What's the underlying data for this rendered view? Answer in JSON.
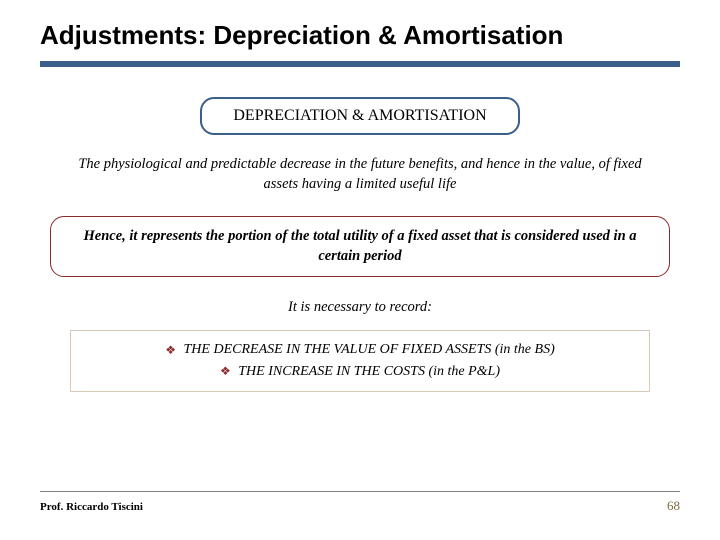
{
  "colors": {
    "accent_blue": "#3a5f8a",
    "dark_red": "#8b2a2a",
    "light_border": "#d9c9b8",
    "page_num": "#7a6a3a",
    "footer_line": "#808080"
  },
  "title": "Adjustments: Depreciation & Amortisation",
  "pill": {
    "label": "DEPRECIATION & AMORTISATION"
  },
  "definition": "The physiological and predictable decrease in the future benefits, and hence in the value, of fixed assets having a limited useful life",
  "wide_box": "Hence, it represents the portion of the total utility of a fixed asset  that is considered used in a certain period",
  "record_intro": "It is necessary to record:",
  "record_lines": [
    "THE DECREASE IN THE VALUE OF FIXED ASSETS (in the BS)",
    "THE INCREASE IN THE COSTS (in the P&L)"
  ],
  "footer": {
    "author": "Prof. Riccardo Tiscini",
    "page": "68"
  }
}
